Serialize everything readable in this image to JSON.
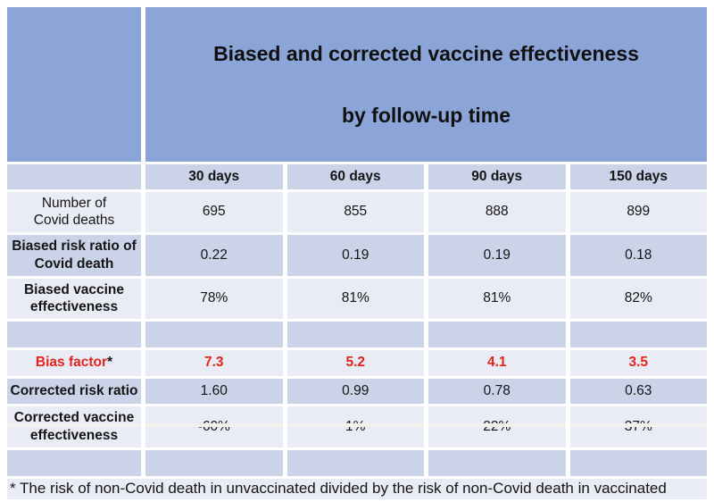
{
  "theme": {
    "header_blue": "#8ca5d9",
    "band_dark": "#cbd3e9",
    "band_light": "#e9ebf5",
    "accent_red": "#e1241c",
    "text_black": "#151515",
    "page_bg": "#ffffff"
  },
  "table": {
    "title_line1": "Biased and corrected vaccine effectiveness",
    "title_line2": "by follow-up time",
    "columns": [
      "30 days",
      "60 days",
      "90 days",
      "150 days"
    ],
    "rows": [
      {
        "label": "Number of\nCovid deaths",
        "values": [
          "695",
          "855",
          "888",
          "899"
        ]
      },
      {
        "label": "Biased risk ratio of\nCovid death",
        "values": [
          "0.22",
          "0.19",
          "0.19",
          "0.18"
        ]
      },
      {
        "label": "Biased vaccine\neffectiveness",
        "values": [
          "78%",
          "81%",
          "81%",
          "82%"
        ]
      },
      {
        "label": "Bias factor",
        "suffix": "*",
        "values": [
          "7.3",
          "5.2",
          "4.1",
          "3.5"
        ]
      },
      {
        "label": "Corrected risk ratio",
        "values": [
          "1.60",
          "0.99",
          "0.78",
          "0.63"
        ]
      },
      {
        "label": "Corrected vaccine\neffectiveness",
        "values": [
          "-60%",
          "1%",
          "22%",
          "37%"
        ]
      }
    ],
    "footnote": "* The risk of non-Covid death in unvaccinated divided by the risk of non-Covid death in vaccinated"
  },
  "chart_data": {
    "type": "table",
    "title": "Biased and corrected vaccine effectiveness by follow-up time",
    "categories": [
      "30 days",
      "60 days",
      "90 days",
      "150 days"
    ],
    "series": [
      {
        "name": "Number of Covid deaths",
        "values": [
          695,
          855,
          888,
          899
        ]
      },
      {
        "name": "Biased risk ratio of Covid death",
        "values": [
          0.22,
          0.19,
          0.19,
          0.18
        ]
      },
      {
        "name": "Biased vaccine effectiveness",
        "values": [
          "78%",
          "81%",
          "81%",
          "82%"
        ]
      },
      {
        "name": "Bias factor",
        "values": [
          7.3,
          5.2,
          4.1,
          3.5
        ]
      },
      {
        "name": "Corrected risk ratio",
        "values": [
          1.6,
          0.99,
          0.78,
          0.63
        ]
      },
      {
        "name": "Corrected vaccine effectiveness",
        "values": [
          "-60%",
          "1%",
          "22%",
          "37%"
        ]
      }
    ],
    "footnote": "* The risk of non-Covid death in unvaccinated divided by the risk of non-Covid death in vaccinated",
    "annotations": [
      "Bias factor row highlighted in red"
    ]
  }
}
